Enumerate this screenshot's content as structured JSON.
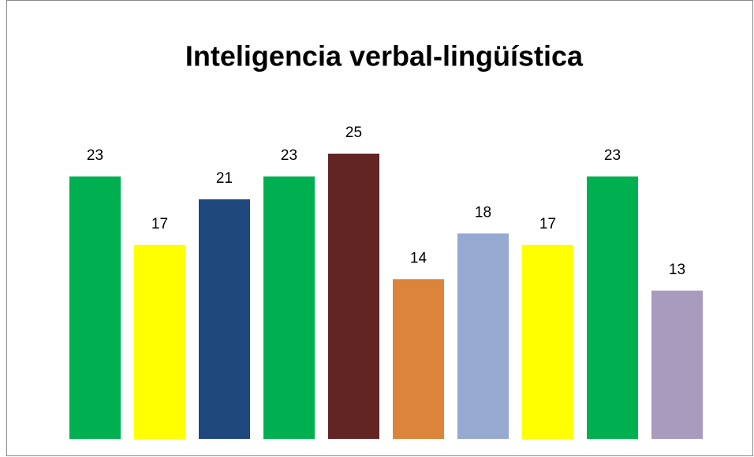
{
  "chart_data": {
    "type": "bar",
    "title": "Inteligencia verbal-lingüística",
    "categories": [
      null,
      null,
      null,
      null,
      null,
      null,
      null,
      null,
      null,
      null
    ],
    "values": [
      23,
      17,
      21,
      23,
      25,
      14,
      18,
      17,
      23,
      13
    ],
    "colors": [
      "#00b050",
      "#ffff00",
      "#1f497d",
      "#00b050",
      "#632523",
      "#dd843c",
      "#95a9d1",
      "#ffff00",
      "#00b050",
      "#a99bbd"
    ]
  }
}
